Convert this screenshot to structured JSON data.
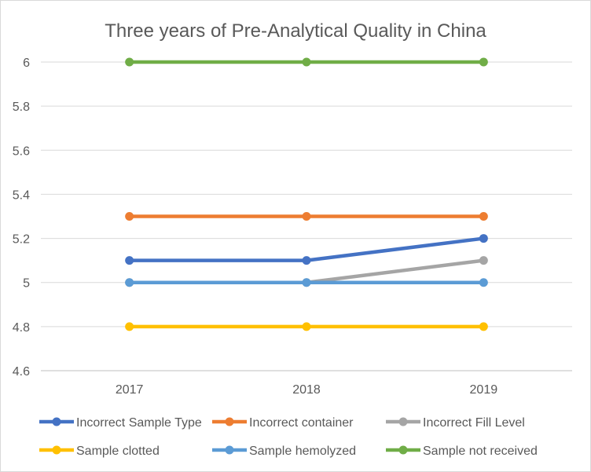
{
  "chart_data": {
    "type": "line",
    "title": "Three years of Pre-Analytical Quality in China",
    "xlabel": "",
    "ylabel": "",
    "categories": [
      "2017",
      "2018",
      "2019"
    ],
    "ylim": [
      4.6,
      6
    ],
    "yticks": [
      "4.6",
      "4.8",
      "5",
      "5.2",
      "5.4",
      "5.6",
      "5.8",
      "6"
    ],
    "grid": true,
    "legend_position": "bottom",
    "series": [
      {
        "name": "Incorrect Sample Type",
        "color": "#4472C4",
        "values": [
          5.1,
          5.1,
          5.2
        ]
      },
      {
        "name": "Incorrect container",
        "color": "#ED7D31",
        "values": [
          5.3,
          5.3,
          5.3
        ]
      },
      {
        "name": "Incorrect Fill Level",
        "color": "#A5A5A5",
        "values": [
          5.0,
          5.0,
          5.1
        ]
      },
      {
        "name": "Sample clotted",
        "color": "#FFC000",
        "values": [
          4.8,
          4.8,
          4.8
        ]
      },
      {
        "name": "Sample hemolyzed",
        "color": "#5B9BD5",
        "values": [
          5.0,
          5.0,
          5.0
        ]
      },
      {
        "name": "Sample not received",
        "color": "#70AD47",
        "values": [
          6.0,
          6.0,
          6.0
        ]
      }
    ]
  }
}
